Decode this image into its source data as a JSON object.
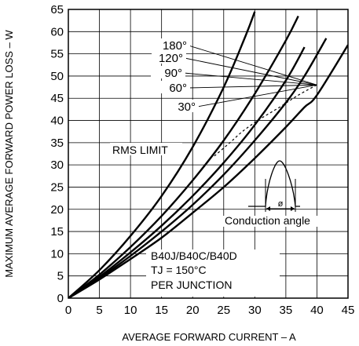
{
  "chart_data": {
    "type": "line",
    "xlabel": "AVERAGE FORWARD CURRENT – A",
    "ylabel": "MAXIMUM AVERAGE FORWARD POWER LOSS – W",
    "xlim": [
      0,
      45
    ],
    "ylim": [
      0,
      65
    ],
    "xticks": [
      0,
      5,
      10,
      15,
      20,
      25,
      30,
      35,
      40,
      45
    ],
    "yticks": [
      0,
      5,
      10,
      15,
      20,
      25,
      30,
      35,
      40,
      45,
      50,
      55,
      60,
      65
    ],
    "grid": true,
    "series": [
      {
        "name": "180°",
        "x": [
          0,
          5,
          10,
          15,
          20,
          25,
          30,
          35,
          38,
          40,
          45
        ],
        "y": [
          0,
          4.2,
          8.8,
          13.6,
          19.2,
          25.0,
          31.5,
          38.5,
          43.0,
          45.7,
          57.0
        ]
      },
      {
        "name": "120°",
        "x": [
          0,
          5,
          10,
          15,
          20,
          25,
          30,
          35,
          38,
          41.5
        ],
        "y": [
          0,
          4.5,
          9.5,
          15.0,
          21.0,
          27.8,
          35.5,
          44.0,
          50.0,
          58.5
        ]
      },
      {
        "name": "90°",
        "x": [
          0,
          5,
          10,
          15,
          20,
          25,
          30,
          35,
          38
        ],
        "y": [
          0,
          4.8,
          10.3,
          16.3,
          23.0,
          30.5,
          39.0,
          49.0,
          56.5
        ]
      },
      {
        "name": "60°",
        "x": [
          0,
          5,
          10,
          15,
          20,
          25,
          30,
          35,
          37
        ],
        "y": [
          0,
          5.3,
          11.5,
          18.5,
          26.5,
          35.5,
          46.0,
          58.0,
          63.5
        ]
      },
      {
        "name": "30°",
        "x": [
          0,
          5,
          10,
          15,
          20,
          25,
          28.5,
          30
        ],
        "y": [
          0,
          6.3,
          14.0,
          23.0,
          34.0,
          47.5,
          59.0,
          64.5
        ]
      }
    ],
    "rms_limit": {
      "name": "RMS LIMIT",
      "x": [
        23.5,
        26,
        28,
        30.5,
        34,
        37,
        40
      ],
      "y": [
        32,
        35,
        37.5,
        40,
        43,
        45.7,
        48
      ]
    },
    "series_labels": [
      "180°",
      "120°",
      "90°",
      "60°",
      "30°"
    ],
    "annotations": {
      "rms_limit": "RMS LIMIT",
      "conduction_angle": "Conduction angle",
      "phi": "ø",
      "conditions": [
        "B40J/B40C/B40D",
        "TJ = 150°C",
        "PER JUNCTION"
      ]
    }
  }
}
